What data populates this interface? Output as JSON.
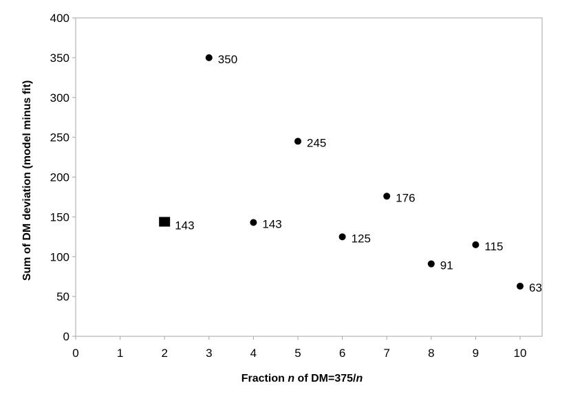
{
  "chart_data": {
    "type": "scatter",
    "title": "",
    "xlabel_parts": [
      {
        "text": "Fraction ",
        "italic": false
      },
      {
        "text": "n",
        "italic": true
      },
      {
        "text": " of DM=375/",
        "italic": false
      },
      {
        "text": "n",
        "italic": true
      }
    ],
    "ylabel": "Sum of DM deviation (model minus fit)",
    "xlim": [
      0,
      10.5
    ],
    "ylim": [
      0,
      400
    ],
    "xticks": [
      0,
      1,
      2,
      3,
      4,
      5,
      6,
      7,
      8,
      9,
      10
    ],
    "yticks": [
      0,
      50,
      100,
      150,
      200,
      250,
      300,
      350,
      400
    ],
    "grid": false,
    "legend": "none",
    "series": [
      {
        "marker": "square",
        "color": "#000000",
        "points": [
          {
            "x": 2,
            "y": 143,
            "label": "143"
          }
        ]
      },
      {
        "marker": "circle",
        "color": "#000000",
        "points": [
          {
            "x": 3,
            "y": 350,
            "label": "350"
          },
          {
            "x": 4,
            "y": 143,
            "label": "143"
          },
          {
            "x": 5,
            "y": 245,
            "label": "245"
          },
          {
            "x": 6,
            "y": 125,
            "label": "125"
          },
          {
            "x": 7,
            "y": 176,
            "label": "176"
          },
          {
            "x": 8,
            "y": 91,
            "label": "91"
          },
          {
            "x": 9,
            "y": 115,
            "label": "115"
          },
          {
            "x": 10,
            "y": 63,
            "label": "63"
          }
        ]
      }
    ],
    "axis_color": "#a6a6a6"
  }
}
